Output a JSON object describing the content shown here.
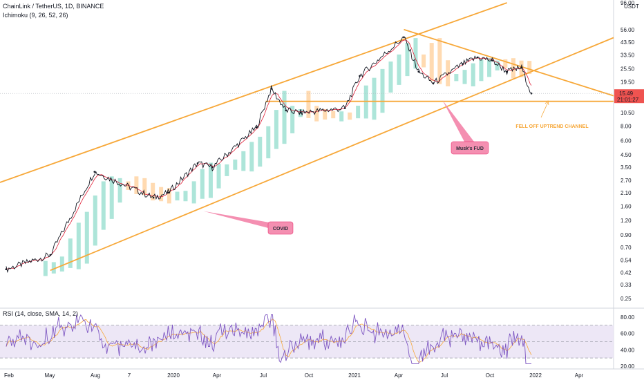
{
  "header": {
    "symbol_line": "ChainLink / TetherUS, 1D, BINANCE",
    "indicator_line": "Ichimoku (9, 26, 52, 26)"
  },
  "price_axis": {
    "ticks": [
      "96.00",
      "56.00",
      "43.50",
      "33.50",
      "25.50",
      "19.50",
      "15.49",
      "10.50",
      "8.00",
      "6.00",
      "4.50",
      "3.50",
      "2.70",
      "2.10",
      "1.60",
      "1.20",
      "0.90",
      "0.70",
      "0.54",
      "0.42",
      "0.33",
      "0.25"
    ],
    "unit": "USDT",
    "last_price": "15.49",
    "countdown": "21:01:27"
  },
  "time_axis": {
    "labels": [
      "Feb",
      "May",
      "Aug",
      "7",
      "2020",
      "Apr",
      "Jul",
      "Oct",
      "2021",
      "Apr",
      "Jul",
      "Oct",
      "2022",
      "Apr"
    ]
  },
  "rsi": {
    "label": "RSI (14, close, SMA, 14, 2)",
    "ticks": [
      "80.00",
      "60.00",
      "40.00",
      "20.00"
    ]
  },
  "annotations": {
    "covid": "COVID",
    "musk": "Musk's FUD",
    "fell_off": "FELL OFF UPTREND CHANNEL"
  },
  "colors": {
    "price_line": "#131722",
    "trendline": "#f7a839",
    "tenkan": "#e01e36",
    "cloud_bull": "#9fe0d2",
    "cloud_bear": "#ffd4a3",
    "rsi_line": "#7e57c2",
    "rsi_ma": "#f7a839",
    "rsi_band": "#ede7f6",
    "callout": "#f48fb1",
    "last_price_bg": "#ef5350"
  },
  "chart_data": {
    "type": "line",
    "title": "ChainLink / TetherUS, 1D, BINANCE",
    "xlabel": "",
    "ylabel": "USDT",
    "y_scale": "log",
    "ylim": [
      0.25,
      96
    ],
    "x": [
      "2019-02",
      "2019-05",
      "2019-08",
      "2019-12",
      "2020-01",
      "2020-03",
      "2020-04",
      "2020-07",
      "2020-08",
      "2020-09",
      "2020-10",
      "2021-01",
      "2021-02",
      "2021-05",
      "2021-06",
      "2021-07",
      "2021-09",
      "2021-10",
      "2021-11",
      "2021-12",
      "2022-01",
      "2022-01-21"
    ],
    "series": [
      {
        "name": "LINK/USDT close",
        "values": [
          0.45,
          0.6,
          3.2,
          1.9,
          2.1,
          3.8,
          3.5,
          7.8,
          17,
          11,
          10.5,
          11.5,
          22,
          48,
          24,
          19,
          28,
          32,
          30,
          24,
          26,
          15.49
        ]
      }
    ],
    "trendlines": [
      {
        "label": "upper channel",
        "from": [
          "2019-02",
          2.7
        ],
        "to": [
          "2021-12",
          96
        ]
      },
      {
        "label": "lower channel",
        "from": [
          "2019-05",
          0.44
        ],
        "to": [
          "2022-04",
          32
        ]
      },
      {
        "label": "horizontal support",
        "value": 13.2
      },
      {
        "label": "descending resistance",
        "from": [
          "2021-05",
          56
        ],
        "to": [
          "2022-04",
          20
        ]
      }
    ],
    "rsi_series": {
      "name": "RSI",
      "ylim": [
        20,
        85
      ],
      "bands": [
        30,
        70
      ]
    }
  }
}
